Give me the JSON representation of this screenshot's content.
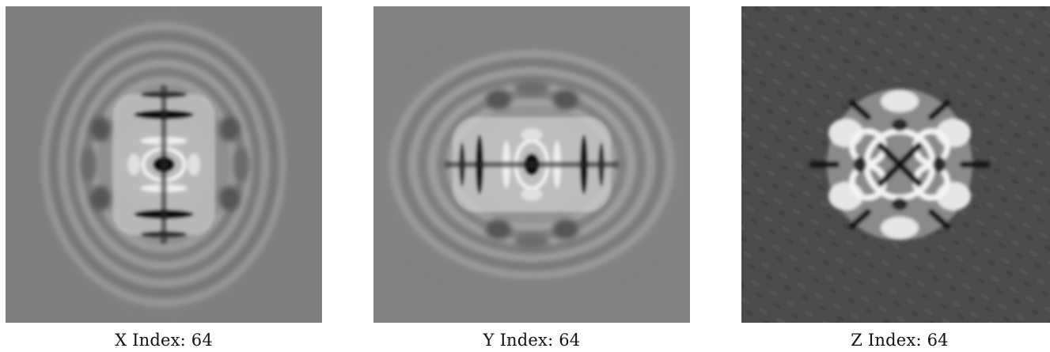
{
  "panels": [
    {
      "id": "x",
      "caption": "X Index: 64",
      "background": "#7e7e7e"
    },
    {
      "id": "y",
      "caption": "Y Index: 64",
      "background": "#828282"
    },
    {
      "id": "z",
      "caption": "Z Index: 64",
      "background": "#4a4a4a"
    }
  ]
}
